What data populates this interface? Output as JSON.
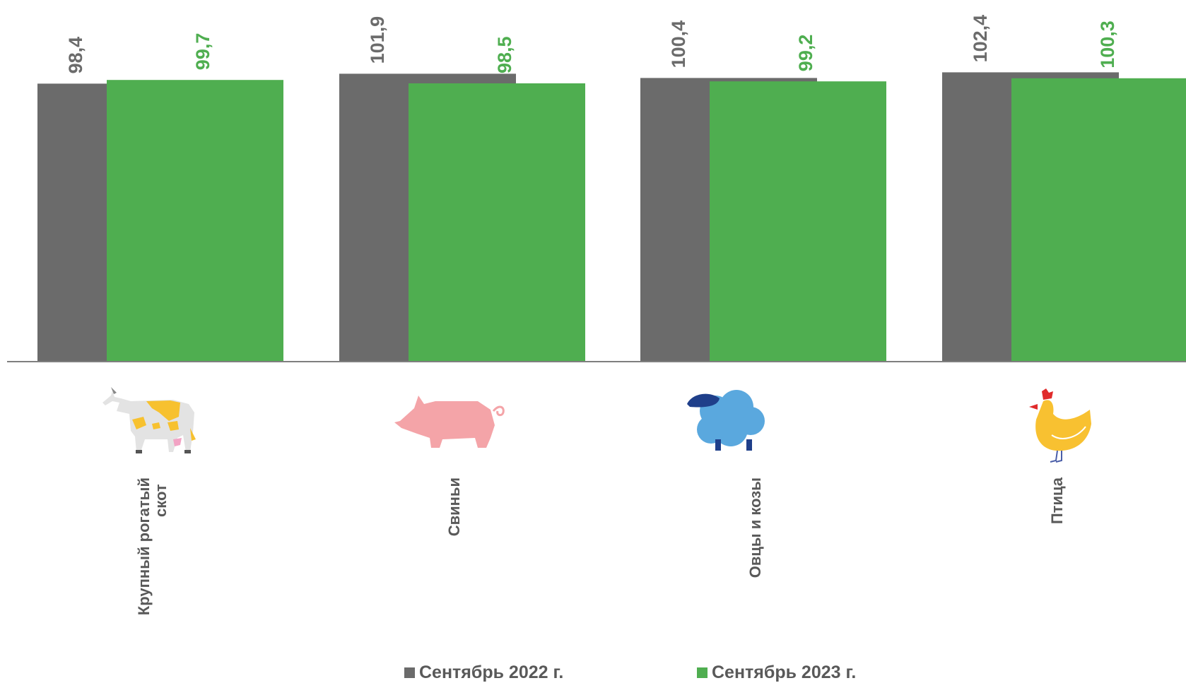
{
  "chart_data": {
    "type": "bar",
    "categories": [
      "Крупный рогатый скот",
      "Свиньи",
      "Овцы и козы",
      "Птица"
    ],
    "category_lines": [
      [
        "Крупный рогатый",
        "скот"
      ],
      [
        "Свиньи"
      ],
      [
        "Овцы и козы"
      ],
      [
        "Птица"
      ]
    ],
    "category_icons": [
      "cow-icon",
      "pig-icon",
      "sheep-icon",
      "chicken-icon"
    ],
    "series": [
      {
        "name": "Сентябрь 2022 г.",
        "values": [
          98.4,
          101.9,
          100.4,
          102.4
        ],
        "labels": [
          "98,4",
          "101,9",
          "100,4",
          "102,4"
        ],
        "color": "#6b6b6b"
      },
      {
        "name": "Сентябрь 2023 г.",
        "values": [
          99.7,
          98.5,
          99.2,
          100.3
        ],
        "labels": [
          "99,7",
          "98,5",
          "99,2",
          "100,3"
        ],
        "color": "#4fae50"
      }
    ],
    "ylim": [
      0,
      105
    ],
    "grid": false,
    "legend_position": "bottom"
  },
  "legend": {
    "series_2022": "Сентябрь 2022 г.",
    "series_2023": "Сентябрь 2023 г."
  }
}
